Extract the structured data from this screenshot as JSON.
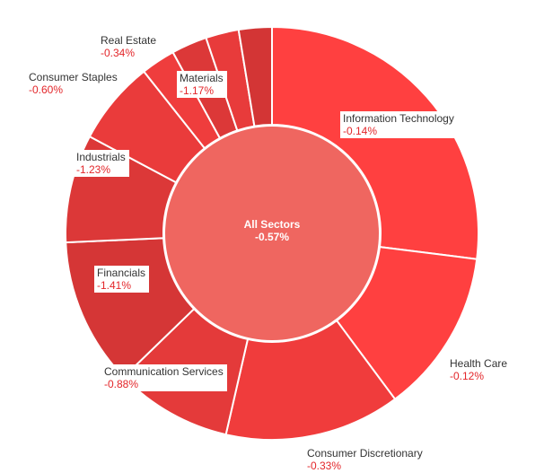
{
  "chart_data": {
    "type": "pie",
    "center_label": "All Sectors",
    "center_value": "-0.57%",
    "colors": {
      "center": "#ef6660",
      "label_value": "#e3262a",
      "label_name": "#333333",
      "separator": "#ffffff"
    },
    "slices": [
      {
        "name": "Information Technology",
        "value_text": "-0.14%",
        "value": -0.14,
        "weight": 27.1,
        "color": "#ff4040"
      },
      {
        "name": "Health Care",
        "value_text": "-0.12%",
        "value": -0.12,
        "weight": 12.9,
        "color": "#ff4040"
      },
      {
        "name": "Consumer Discretionary",
        "value_text": "-0.33%",
        "value": -0.33,
        "weight": 13.8,
        "color": "#f03c3c"
      },
      {
        "name": "Communication Services",
        "value_text": "-0.88%",
        "value": -0.88,
        "weight": 9.2,
        "color": "#e43a3a"
      },
      {
        "name": "Financials",
        "value_text": "-1.41%",
        "value": -1.41,
        "weight": 11.6,
        "color": "#d53636"
      },
      {
        "name": "Industrials",
        "value_text": "-1.23%",
        "value": -1.23,
        "weight": 8.5,
        "color": "#dc3838"
      },
      {
        "name": "Consumer Staples",
        "value_text": "-0.60%",
        "value": -0.6,
        "weight": 6.6,
        "color": "#ea3b3b"
      },
      {
        "name": "Real Estate",
        "value_text": "-0.34%",
        "value": -0.34,
        "weight": 2.7,
        "color": "#ef3d3d"
      },
      {
        "name": "Materials",
        "value_text": "-1.17%",
        "value": -1.17,
        "weight": 2.8,
        "color": "#dc3838"
      },
      {
        "name": "",
        "value_text": "",
        "value": null,
        "weight": 2.6,
        "color": "#e83b3b"
      },
      {
        "name": "",
        "value_text": "",
        "value": null,
        "weight": 2.6,
        "color": "#d33535"
      }
    ]
  }
}
